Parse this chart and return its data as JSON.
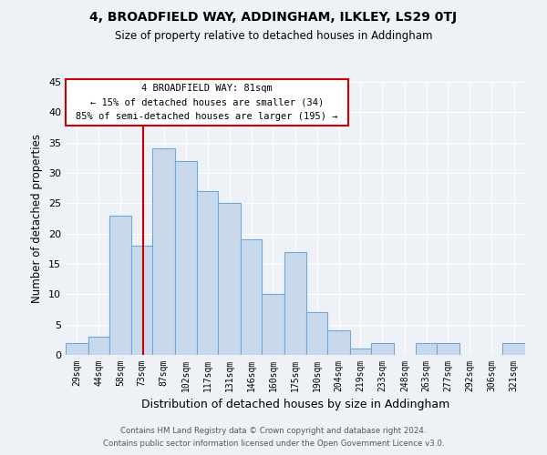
{
  "title": "4, BROADFIELD WAY, ADDINGHAM, ILKLEY, LS29 0TJ",
  "subtitle": "Size of property relative to detached houses in Addingham",
  "xlabel": "Distribution of detached houses by size in Addingham",
  "ylabel": "Number of detached properties",
  "bar_labels": [
    "29sqm",
    "44sqm",
    "58sqm",
    "73sqm",
    "87sqm",
    "102sqm",
    "117sqm",
    "131sqm",
    "146sqm",
    "160sqm",
    "175sqm",
    "190sqm",
    "204sqm",
    "219sqm",
    "233sqm",
    "248sqm",
    "263sqm",
    "277sqm",
    "292sqm",
    "306sqm",
    "321sqm"
  ],
  "bar_values": [
    2,
    3,
    23,
    18,
    34,
    32,
    27,
    25,
    19,
    10,
    17,
    7,
    4,
    1,
    2,
    0,
    2,
    2,
    0,
    0,
    2
  ],
  "bar_color": "#c9d9ec",
  "bar_edge_color": "#6fa8d6",
  "background_color": "#eef2f7",
  "grid_color": "#ffffff",
  "annotation_box_text": "4 BROADFIELD WAY: 81sqm\n← 15% of detached houses are smaller (34)\n85% of semi-detached houses are larger (195) →",
  "annotation_box_color": "#ffffff",
  "annotation_box_edge_color": "#cc0000",
  "vline_x": 81,
  "ylim": [
    0,
    45
  ],
  "yticks": [
    0,
    5,
    10,
    15,
    20,
    25,
    30,
    35,
    40,
    45
  ],
  "footer_line1": "Contains HM Land Registry data © Crown copyright and database right 2024.",
  "footer_line2": "Contains public sector information licensed under the Open Government Licence v3.0."
}
